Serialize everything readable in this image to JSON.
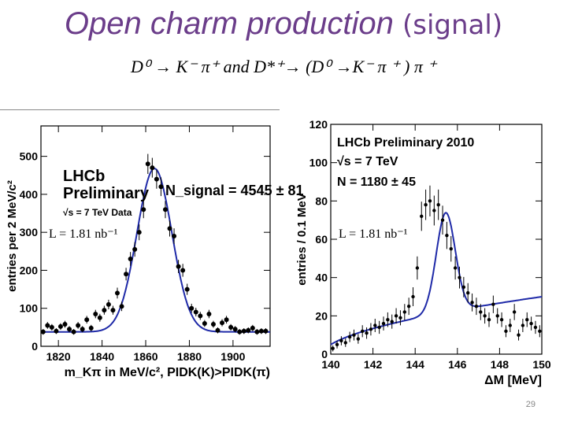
{
  "slide": {
    "title_main": "Open charm production ",
    "title_paren": "(signal)",
    "subtitle": "D⁰ → K⁻ π⁺ and D*⁺→ (D⁰ →K⁻ π ⁺ ) π ⁺",
    "page_number": "29"
  },
  "chart_data": [
    {
      "type": "scatter",
      "title": "",
      "xlabel": "m_Kπ in MeV/c², PIDK(K)>PIDK(π)",
      "ylabel": "entries per 2 MeV/c²",
      "xlim": [
        1812,
        1917
      ],
      "ylim": [
        0,
        580
      ],
      "xticks": [
        1820,
        1840,
        1860,
        1880,
        1900
      ],
      "yticks": [
        0,
        100,
        200,
        300,
        400,
        500
      ],
      "annotations": {
        "experiment": "LHCb",
        "status": "Preliminary",
        "energy": "√s = 7 TeV Data",
        "nsignal": "N_signal = 4545 ± 81",
        "luminosity": "L = 1.81 nb⁻¹"
      },
      "series": [
        {
          "name": "data",
          "x": [
            1813,
            1815,
            1817,
            1819,
            1821,
            1823,
            1825,
            1827,
            1829,
            1831,
            1833,
            1835,
            1837,
            1839,
            1841,
            1843,
            1845,
            1847,
            1849,
            1851,
            1853,
            1855,
            1857,
            1859,
            1861,
            1863,
            1865,
            1867,
            1869,
            1871,
            1873,
            1875,
            1877,
            1879,
            1881,
            1883,
            1885,
            1887,
            1889,
            1891,
            1893,
            1895,
            1897,
            1899,
            1901,
            1903,
            1905,
            1907,
            1909,
            1911,
            1913,
            1915
          ],
          "y": [
            38,
            55,
            50,
            40,
            52,
            58,
            45,
            38,
            55,
            45,
            70,
            48,
            85,
            75,
            95,
            110,
            95,
            140,
            105,
            190,
            230,
            255,
            300,
            360,
            480,
            470,
            440,
            420,
            360,
            310,
            290,
            210,
            200,
            150,
            100,
            90,
            80,
            60,
            85,
            58,
            42,
            62,
            70,
            50,
            45,
            38,
            40,
            42,
            48,
            38,
            40,
            40
          ]
        },
        {
          "name": "fit",
          "peak_mean": 1864,
          "sigma": 8,
          "amplitude": 430,
          "background": 38
        }
      ]
    },
    {
      "type": "scatter",
      "title": "LHCb Preliminary 2010",
      "xlabel": "ΔM [MeV]",
      "ylabel": "entries / 0.1 MeV",
      "xlim": [
        140,
        150
      ],
      "ylim": [
        0,
        120
      ],
      "xticks": [
        140,
        142,
        144,
        146,
        148,
        150
      ],
      "yticks": [
        0,
        20,
        40,
        60,
        80,
        100,
        120
      ],
      "annotations": {
        "experiment": "LHCb Preliminary 2010",
        "energy": "√s = 7 TeV",
        "n": "N = 1180 ± 45",
        "luminosity": "L = 1.81 nb⁻¹"
      },
      "series": [
        {
          "name": "data",
          "x": [
            140.1,
            140.3,
            140.5,
            140.7,
            140.9,
            141.1,
            141.3,
            141.5,
            141.7,
            141.9,
            142.1,
            142.3,
            142.5,
            142.7,
            142.9,
            143.1,
            143.3,
            143.5,
            143.7,
            143.9,
            144.1,
            144.3,
            144.5,
            144.7,
            144.9,
            145.1,
            145.3,
            145.5,
            145.7,
            145.9,
            146.1,
            146.3,
            146.5,
            146.7,
            146.9,
            147.1,
            147.3,
            147.5,
            147.7,
            147.9,
            148.1,
            148.3,
            148.5,
            148.7,
            148.9,
            149.1,
            149.3,
            149.5,
            149.7,
            149.9
          ],
          "y": [
            3,
            5,
            7,
            6,
            9,
            10,
            8,
            12,
            11,
            13,
            15,
            14,
            16,
            18,
            17,
            20,
            19,
            22,
            25,
            30,
            45,
            72,
            78,
            80,
            75,
            78,
            70,
            62,
            55,
            45,
            40,
            35,
            32,
            27,
            25,
            22,
            20,
            18,
            26,
            20,
            18,
            12,
            15,
            22,
            10,
            15,
            18,
            16,
            14,
            12
          ]
        },
        {
          "name": "fit",
          "peak_mean": 145.45,
          "sigma": 0.45,
          "amplitude": 52,
          "background_shape": "threshold"
        }
      ]
    }
  ]
}
